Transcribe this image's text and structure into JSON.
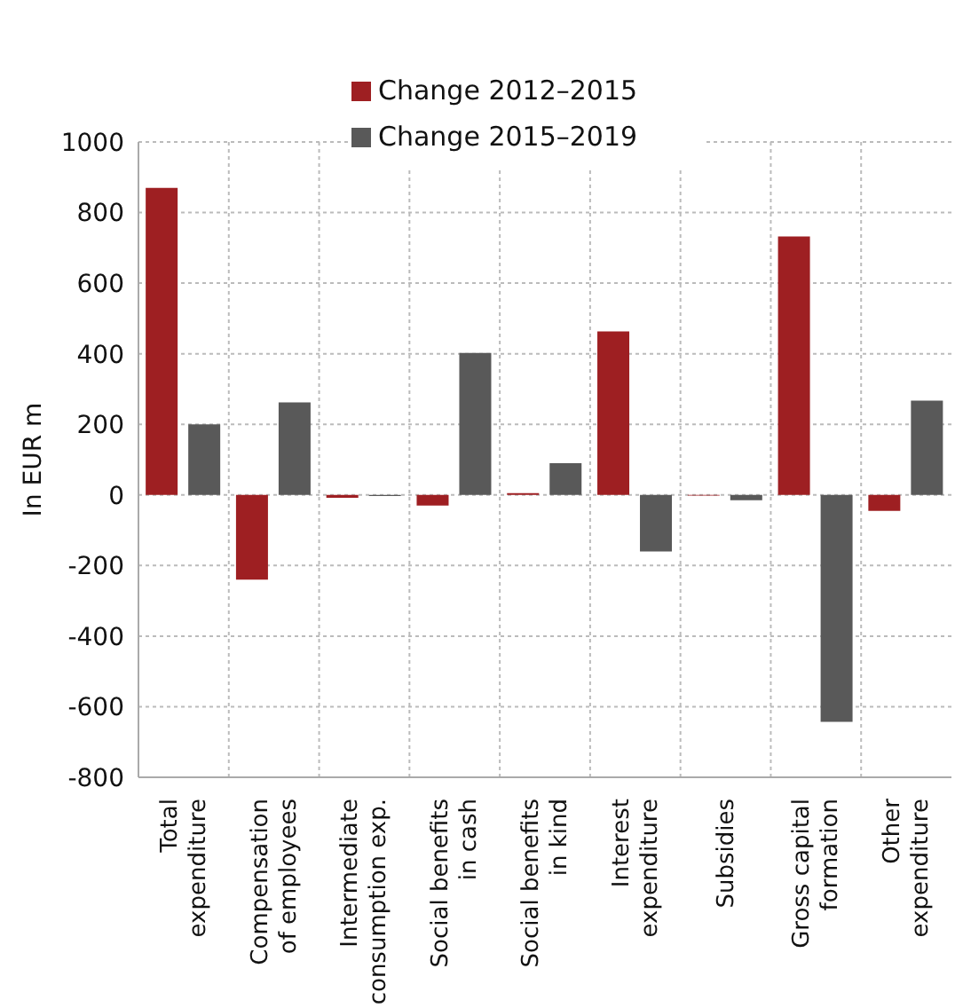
{
  "chart_data": {
    "type": "bar",
    "ylabel": "In EUR m",
    "categories": [
      "Total\nexpenditure",
      "Compensation\nof employees",
      "Intermediate\nconsumption exp.",
      "Social benefits\nin cash",
      "Social benefits\nin kind",
      "Interest\nexpenditure",
      "Subsidies",
      "Gross capital\nformation",
      "Other\nexpenditure"
    ],
    "series": [
      {
        "name": "Change 2012–2015",
        "color": "#9e1f22",
        "values": [
          870,
          -240,
          -8,
          -30,
          5,
          463,
          -2,
          732,
          -45
        ]
      },
      {
        "name": "Change 2015–2019",
        "color": "#595959",
        "values": [
          200,
          262,
          -3,
          402,
          90,
          -160,
          -15,
          -643,
          267
        ]
      }
    ],
    "ylim": [
      -800,
      1000
    ],
    "yticks": [
      -800,
      -600,
      -400,
      -200,
      0,
      200,
      400,
      600,
      800,
      1000
    ],
    "grid": true,
    "legend": "top"
  }
}
